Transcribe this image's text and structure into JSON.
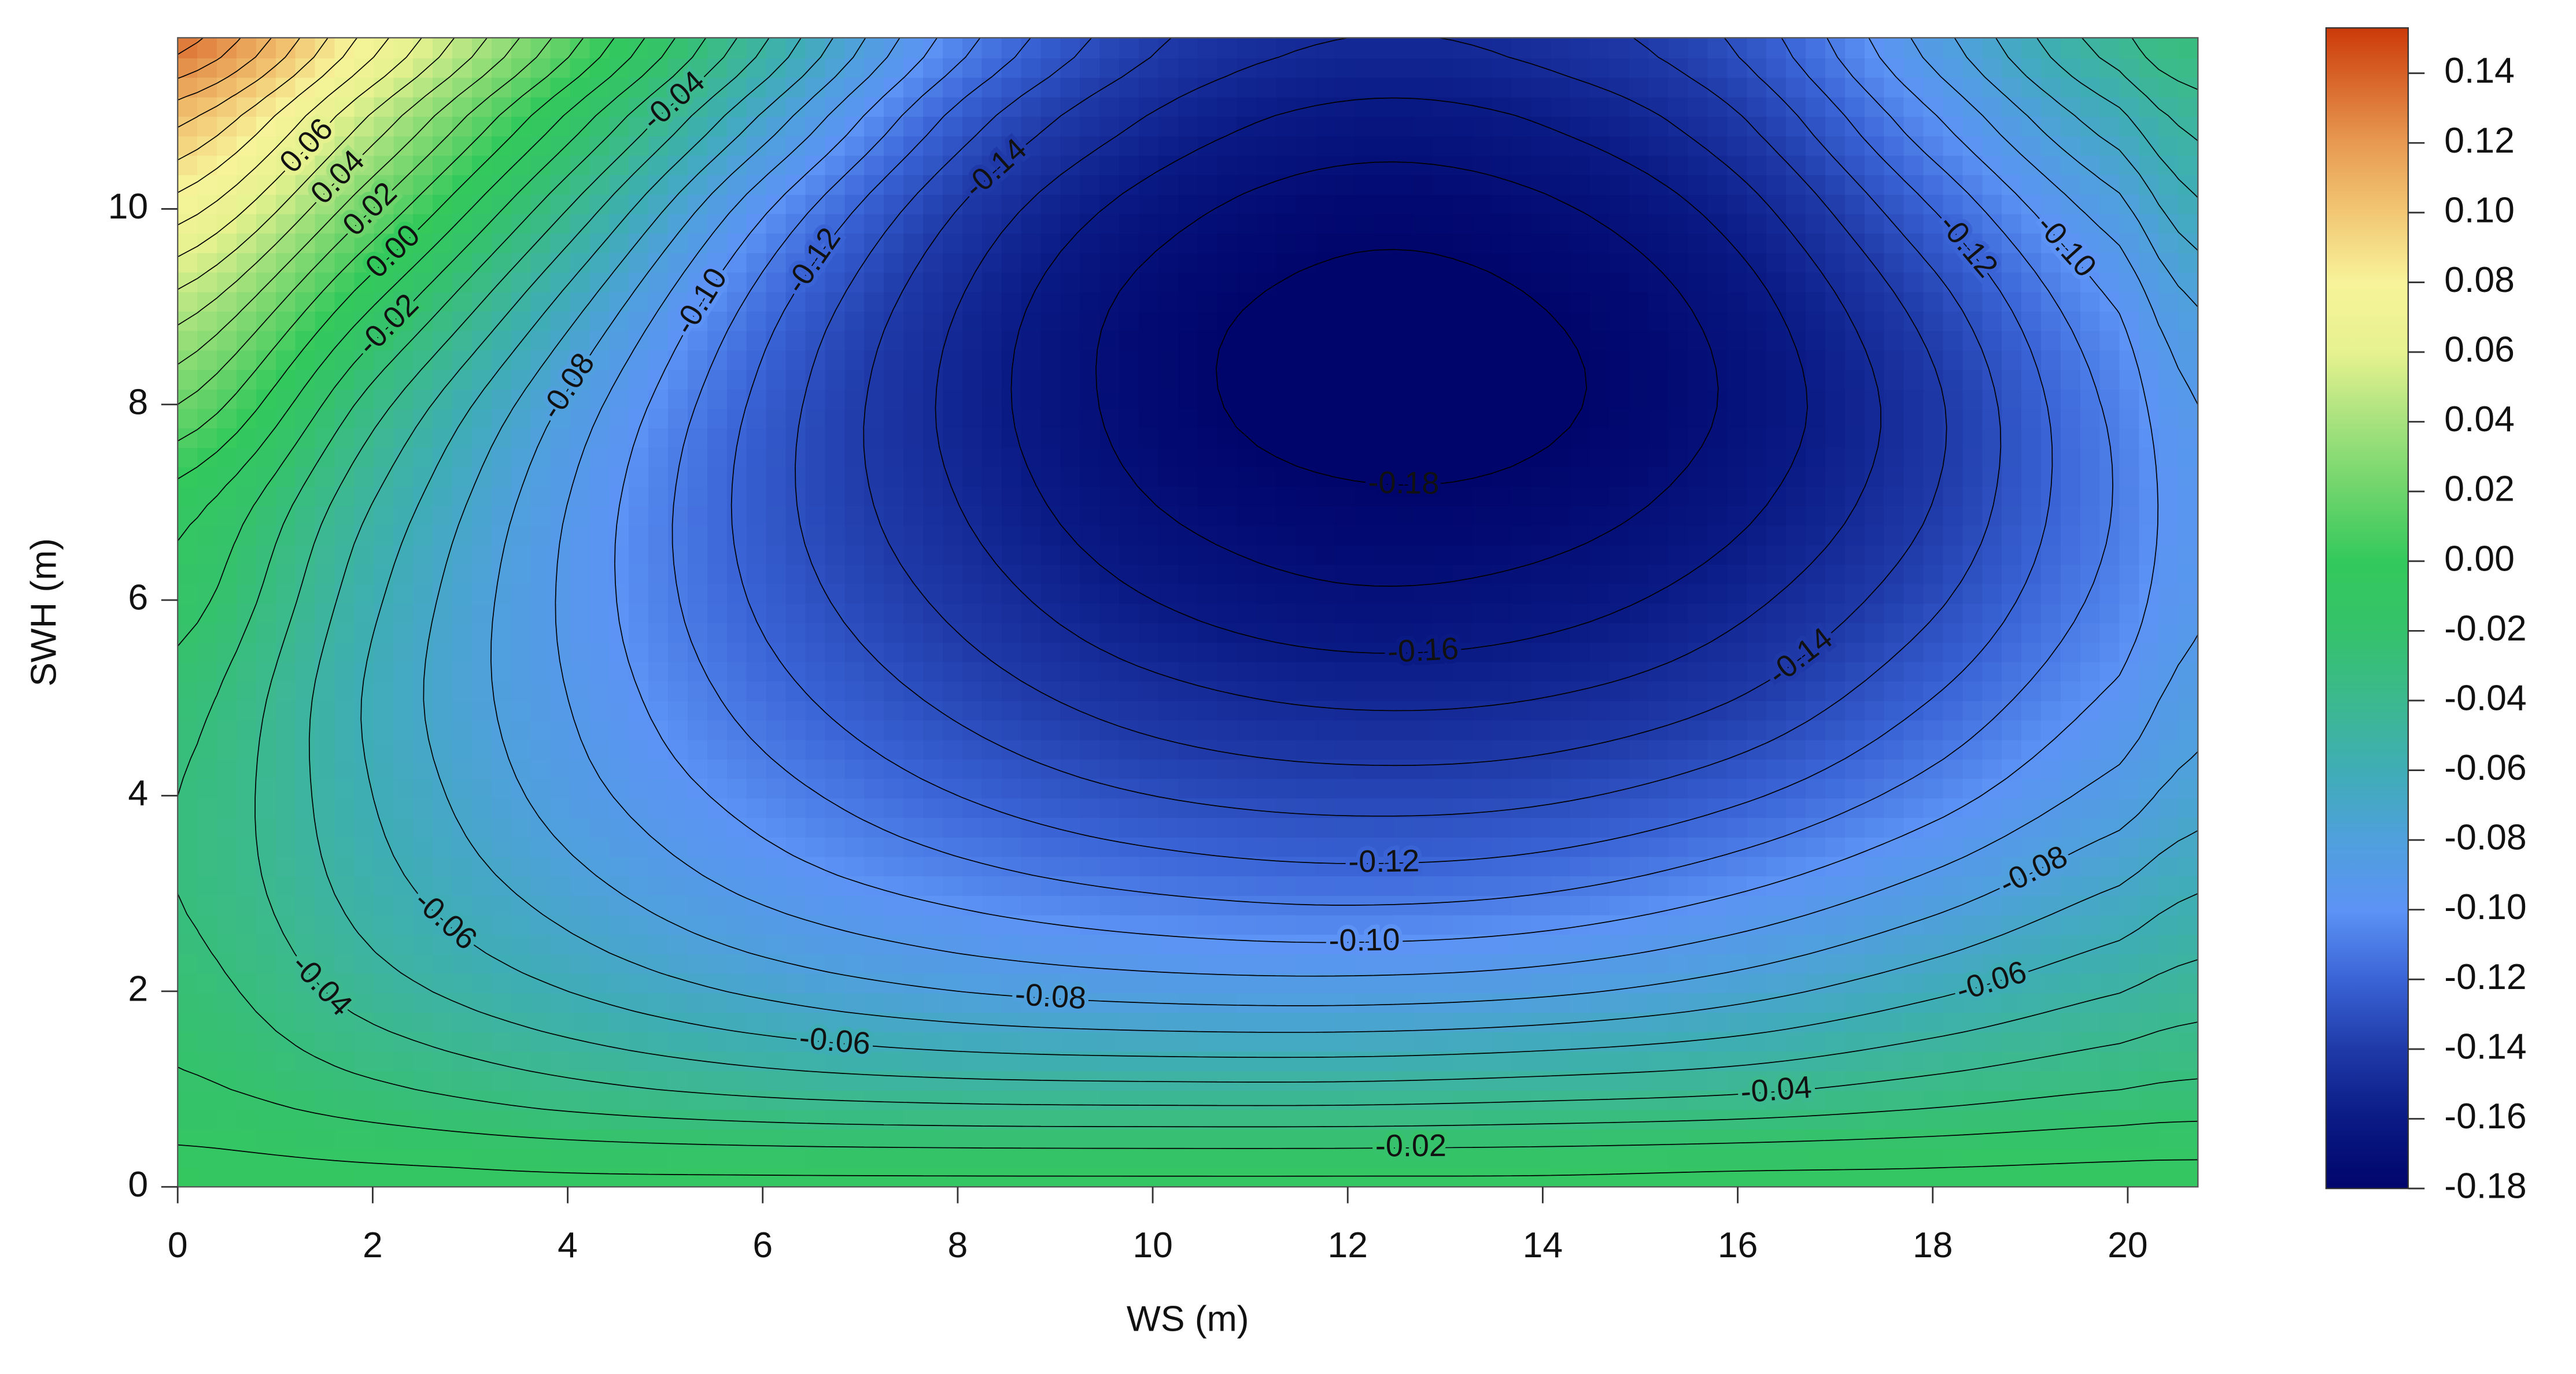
{
  "chart_data": {
    "type": "contour",
    "x_label": "WS (m)",
    "y_label": "SWH (m)",
    "x": [
      0,
      2,
      4,
      6,
      8,
      10,
      12,
      14,
      16,
      18,
      20,
      20.72
    ],
    "y": [
      0,
      1,
      2,
      3,
      4,
      5,
      6,
      7,
      8,
      9,
      10,
      11,
      11.75
    ],
    "z": [
      [
        -0.005,
        -0.006,
        -0.007,
        -0.007,
        -0.007,
        -0.007,
        -0.007,
        -0.007,
        -0.006,
        -0.006,
        -0.005,
        -0.005
      ],
      [
        -0.018,
        -0.028,
        -0.037,
        -0.043,
        -0.046,
        -0.047,
        -0.047,
        -0.045,
        -0.042,
        -0.036,
        -0.03,
        -0.028
      ],
      [
        -0.025,
        -0.045,
        -0.06,
        -0.072,
        -0.08,
        -0.084,
        -0.085,
        -0.082,
        -0.074,
        -0.062,
        -0.05,
        -0.045
      ],
      [
        -0.03,
        -0.055,
        -0.075,
        -0.092,
        -0.103,
        -0.11,
        -0.113,
        -0.11,
        -0.1,
        -0.085,
        -0.068,
        -0.06
      ],
      [
        -0.03,
        -0.06,
        -0.085,
        -0.105,
        -0.12,
        -0.13,
        -0.134,
        -0.132,
        -0.122,
        -0.105,
        -0.085,
        -0.075
      ],
      [
        -0.025,
        -0.062,
        -0.09,
        -0.115,
        -0.133,
        -0.146,
        -0.152,
        -0.15,
        -0.14,
        -0.12,
        -0.097,
        -0.085
      ],
      [
        -0.015,
        -0.058,
        -0.092,
        -0.122,
        -0.143,
        -0.16,
        -0.168,
        -0.165,
        -0.153,
        -0.132,
        -0.105,
        -0.092
      ],
      [
        -0.005,
        -0.05,
        -0.09,
        -0.125,
        -0.15,
        -0.17,
        -0.178,
        -0.176,
        -0.163,
        -0.14,
        -0.108,
        -0.094
      ],
      [
        0.02,
        -0.035,
        -0.082,
        -0.123,
        -0.153,
        -0.175,
        -0.185,
        -0.182,
        -0.168,
        -0.142,
        -0.106,
        -0.09
      ],
      [
        0.045,
        -0.01,
        -0.065,
        -0.115,
        -0.15,
        -0.174,
        -0.183,
        -0.18,
        -0.165,
        -0.135,
        -0.098,
        -0.08
      ],
      [
        0.075,
        0.02,
        -0.04,
        -0.098,
        -0.14,
        -0.165,
        -0.176,
        -0.172,
        -0.155,
        -0.12,
        -0.082,
        -0.062
      ],
      [
        0.105,
        0.05,
        -0.01,
        -0.07,
        -0.122,
        -0.15,
        -0.162,
        -0.158,
        -0.14,
        -0.1,
        -0.06,
        -0.045
      ],
      [
        0.135,
        0.075,
        0.015,
        -0.048,
        -0.105,
        -0.138,
        -0.15,
        -0.146,
        -0.128,
        -0.085,
        -0.042,
        -0.03
      ]
    ],
    "xlim": [
      0,
      20.72
    ],
    "ylim": [
      0,
      11.75
    ],
    "xticks": [
      0,
      2,
      4,
      6,
      8,
      10,
      12,
      14,
      16,
      18,
      20
    ],
    "yticks": [
      0,
      2,
      4,
      6,
      8,
      10
    ],
    "levels": [
      -0.18,
      -0.17,
      -0.16,
      -0.15,
      -0.14,
      -0.13,
      -0.12,
      -0.11,
      -0.1,
      -0.09,
      -0.08,
      -0.07,
      -0.06,
      -0.05,
      -0.04,
      -0.03,
      -0.02,
      -0.01,
      0,
      0.01,
      0.02,
      0.03,
      0.04,
      0.05,
      0.06,
      0.07,
      0.08,
      0.09,
      0.1,
      0.11,
      0.12,
      0.13,
      0.14
    ],
    "contour_color": "#000000",
    "contour_labels": [
      0.06,
      0.04,
      0.02,
      {
        "value": 0,
        "label": "0.00"
      },
      -0.02,
      -0.04,
      -0.06,
      -0.08,
      {
        "value": -0.1,
        "label": "-0.10"
      },
      -0.12,
      -0.14,
      -0.08,
      -0.12,
      {
        "value": -0.1,
        "label": "-0.10"
      },
      -0.18,
      -0.16,
      -0.14,
      -0.12,
      {
        "value": -0.1,
        "label": "-0.10"
      },
      -0.08,
      -0.06,
      -0.04,
      -0.02,
      -0.06,
      -0.04
    ],
    "zlim": [
      -0.18,
      0.153
    ],
    "zticks": [
      -0.18,
      -0.16,
      -0.14,
      -0.12,
      {
        "value": -0.1,
        "label": "-0.10"
      },
      -0.08,
      -0.06,
      -0.04,
      -0.02,
      {
        "value": 0,
        "label": "0.00"
      },
      0.02,
      0.04,
      0.06,
      0.08,
      {
        "value": 0.1,
        "label": "0.10"
      },
      0.12,
      0.14
    ],
    "colormap": [
      {
        "value": -0.18,
        "color": "#00056b"
      },
      {
        "value": -0.16,
        "color": "#0a1a85"
      },
      {
        "value": -0.14,
        "color": "#1f3aa8"
      },
      {
        "value": -0.12,
        "color": "#3a64d6"
      },
      {
        "value": -0.1,
        "color": "#5c93f5"
      },
      {
        "value": -0.08,
        "color": "#4fa0dc"
      },
      {
        "value": -0.06,
        "color": "#3fadb5"
      },
      {
        "value": -0.04,
        "color": "#3cb98e"
      },
      {
        "value": -0.02,
        "color": "#35c26b"
      },
      {
        "value": 0,
        "color": "#33c95c"
      },
      {
        "value": 0.02,
        "color": "#6dd46b"
      },
      {
        "value": 0.04,
        "color": "#a7e27e"
      },
      {
        "value": 0.06,
        "color": "#e6f28f"
      },
      {
        "value": 0.08,
        "color": "#f7f39a"
      },
      {
        "value": 0.1,
        "color": "#f2c774"
      },
      {
        "value": 0.12,
        "color": "#e79a52"
      },
      {
        "value": 0.153,
        "color": "#cc3a0a"
      }
    ]
  }
}
